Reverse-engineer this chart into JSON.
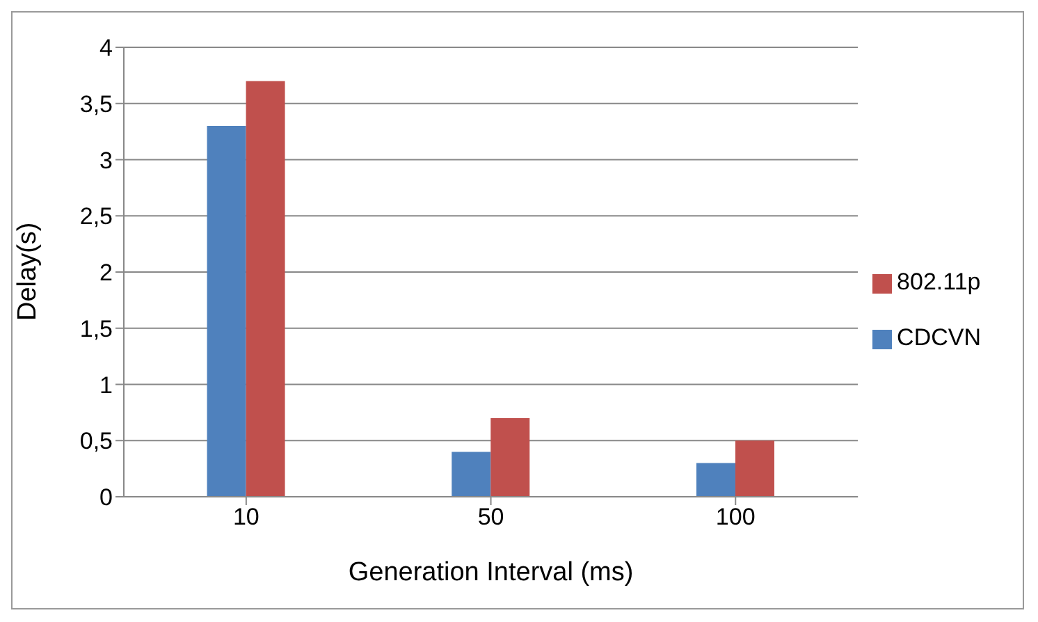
{
  "chart_data": {
    "type": "bar",
    "xlabel": "Generation Interval (ms)",
    "ylabel": "Delay(s)",
    "categories": [
      "10",
      "50",
      "100"
    ],
    "series": [
      {
        "name": "CDCVN",
        "color": "#4f81bd",
        "values": [
          3.3,
          0.4,
          0.3
        ]
      },
      {
        "name": "802.11p",
        "color": "#c0504d",
        "values": [
          3.7,
          0.7,
          0.5
        ]
      }
    ],
    "ylim": [
      0,
      4
    ],
    "yticks": [
      0,
      {
        "value": 0.5,
        "label": "0,5"
      },
      1,
      {
        "value": 1.5,
        "label": "1,5"
      },
      2,
      {
        "value": 2.5,
        "label": "2,5"
      },
      3,
      {
        "value": 3.5,
        "label": "3,5"
      },
      4
    ],
    "grid": "y",
    "legend": "right"
  }
}
